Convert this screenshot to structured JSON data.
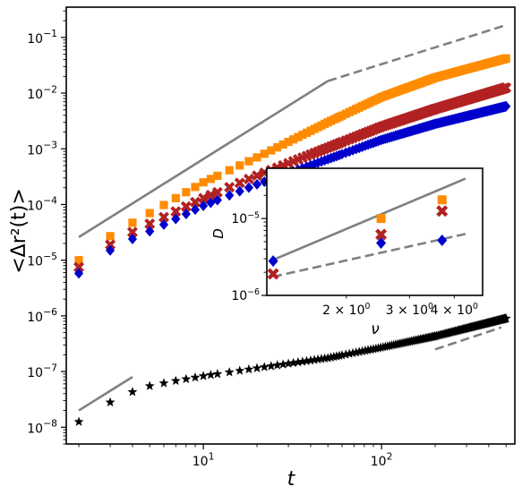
{
  "chart_data": [
    {
      "type": "scatter",
      "xlabel": "t",
      "ylabel": "<Δr²(t)>",
      "xscale": "log",
      "yscale": "log",
      "xlim": [
        1.7,
        560
      ],
      "ylim": [
        5e-09,
        0.35
      ],
      "x_ticks": [
        {
          "value": 10,
          "label": "10^1"
        },
        {
          "value": 100,
          "label": "10^2"
        }
      ],
      "y_ticks": [
        {
          "value": 1e-08,
          "label": "10^-8"
        },
        {
          "value": 1e-07,
          "label": "10^-7"
        },
        {
          "value": 1e-06,
          "label": "10^-6"
        },
        {
          "value": 1e-05,
          "label": "10^-5"
        },
        {
          "value": 0.0001,
          "label": "10^-4"
        },
        {
          "value": 0.001,
          "label": "10^-3"
        },
        {
          "value": 0.01,
          "label": "10^-2"
        },
        {
          "value": 0.1,
          "label": "10^-1"
        }
      ],
      "series": [
        {
          "marker": "square",
          "color": "#ff8c00",
          "t_range": [
            2,
            500
          ],
          "x": [
            2,
            3,
            4,
            5,
            7,
            10,
            20,
            50,
            100,
            200,
            500
          ],
          "y": [
            1e-05,
            2.7e-05,
            4.7e-05,
            7e-05,
            0.00013,
            0.00025,
            0.0007,
            0.003,
            0.0085,
            0.019,
            0.042
          ]
        },
        {
          "marker": "x",
          "color": "#b22222",
          "t_range": [
            2,
            500
          ],
          "x": [
            2,
            3,
            4,
            5,
            7,
            10,
            20,
            50,
            100,
            200,
            500
          ],
          "y": [
            7.5e-06,
            1.9e-05,
            3.2e-05,
            4.5e-05,
            7.5e-05,
            0.00013,
            0.00033,
            0.00105,
            0.0025,
            0.0052,
            0.0125
          ]
        },
        {
          "marker": "diamond",
          "color": "#0000cd",
          "t_range": [
            2,
            500
          ],
          "x": [
            2,
            3,
            4,
            5,
            7,
            10,
            20,
            50,
            100,
            200,
            500
          ],
          "y": [
            5.8e-06,
            1.5e-05,
            2.4e-05,
            3.3e-05,
            5.5e-05,
            9.5e-05,
            0.00023,
            0.00065,
            0.00145,
            0.0028,
            0.0058
          ]
        },
        {
          "marker": "star",
          "color": "#000000",
          "t_range": [
            2,
            500
          ],
          "x": [
            2,
            3,
            4,
            5,
            7,
            10,
            20,
            50,
            100,
            200,
            500
          ],
          "y": [
            1.25e-08,
            2.8e-08,
            4.3e-08,
            5.5e-08,
            6.8e-08,
            8.3e-08,
            1.15e-07,
            1.75e-07,
            2.7e-07,
            4.3e-07,
            9e-07
          ]
        }
      ],
      "guides": [
        {
          "style": "solid",
          "color": "#808080",
          "x": [
            2,
            50
          ],
          "y": [
            2.6e-05,
            0.0165
          ]
        },
        {
          "style": "dashed",
          "color": "#808080",
          "x": [
            50,
            480
          ],
          "y": [
            0.0165,
            0.16
          ]
        },
        {
          "style": "solid",
          "color": "#808080",
          "x": [
            2,
            4
          ],
          "y": [
            2e-08,
            8e-08
          ]
        },
        {
          "style": "dashed",
          "color": "#808080",
          "x": [
            200,
            470
          ],
          "y": [
            2.5e-07,
            6.2e-07
          ]
        }
      ]
    },
    {
      "type": "scatter",
      "inset": true,
      "xlabel": "ν",
      "ylabel": "D",
      "xscale": "log",
      "yscale": "log",
      "xlim": [
        1.2,
        4.8
      ],
      "ylim": [
        1e-06,
        4.5e-05
      ],
      "x_ticks": [
        {
          "value": 2,
          "label": "2 × 10^0"
        },
        {
          "value": 3,
          "label": "3 × 10^0"
        },
        {
          "value": 4,
          "label": "4 × 10^0"
        }
      ],
      "y_ticks": [
        {
          "value": 1e-06,
          "label": "10^-6"
        },
        {
          "value": 1e-05,
          "label": "10^-5"
        }
      ],
      "series": [
        {
          "marker": "square",
          "color": "#ff8c00",
          "x": [
            2.5,
            3.7
          ],
          "y": [
            1e-05,
            1.75e-05
          ]
        },
        {
          "marker": "x",
          "color": "#b22222",
          "x": [
            1.25,
            2.5,
            3.7
          ],
          "y": [
            1.9e-06,
            6.2e-06,
            1.25e-05
          ]
        },
        {
          "marker": "diamond",
          "color": "#0000cd",
          "x": [
            1.25,
            2.5,
            3.7
          ],
          "y": [
            2.8e-06,
            4.8e-06,
            5.2e-06
          ]
        }
      ],
      "guides": [
        {
          "style": "solid",
          "color": "#808080",
          "x": [
            1.25,
            4.3
          ],
          "y": [
            2.9e-06,
            3.3e-05
          ]
        },
        {
          "style": "dashed",
          "color": "#808080",
          "x": [
            1.25,
            4.3
          ],
          "y": [
            1.75e-06,
            6.3e-06
          ]
        }
      ]
    }
  ]
}
